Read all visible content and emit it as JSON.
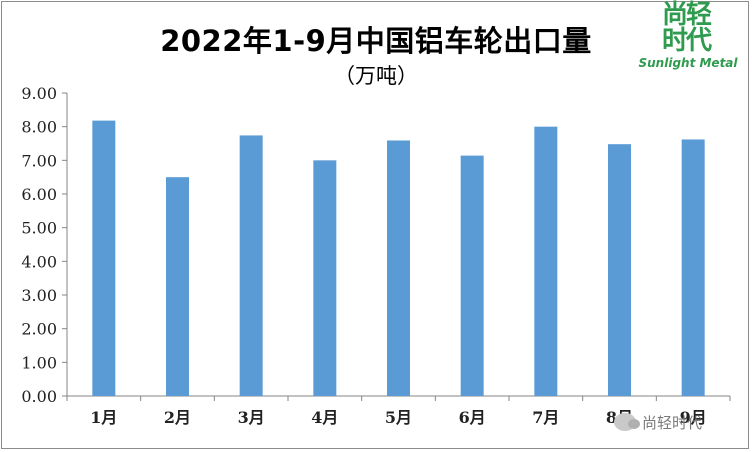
{
  "title": "2022年1-9月中国铝车轮出口量",
  "subtitle": "（万吨）",
  "logo": {
    "chinese": "尚轻时代",
    "english": "Sunlight Metal"
  },
  "watermark": "尚轻时代",
  "colors": {
    "bar": "#5b9bd5",
    "axis": "#868686",
    "logo": "#2e9b4e"
  },
  "chart_data": {
    "type": "bar",
    "categories": [
      "1月",
      "2月",
      "3月",
      "4月",
      "5月",
      "6月",
      "7月",
      "8月",
      "9月"
    ],
    "values": [
      8.18,
      6.5,
      7.74,
      7.0,
      7.59,
      7.14,
      8.0,
      7.48,
      7.62
    ],
    "title": "2022年1-9月中国铝车轮出口量",
    "subtitle": "（万吨）",
    "ylim": [
      0,
      9
    ],
    "yticks": [
      "0.00",
      "1.00",
      "2.00",
      "3.00",
      "4.00",
      "5.00",
      "6.00",
      "7.00",
      "8.00",
      "9.00"
    ],
    "grid": false,
    "legend": "none"
  }
}
